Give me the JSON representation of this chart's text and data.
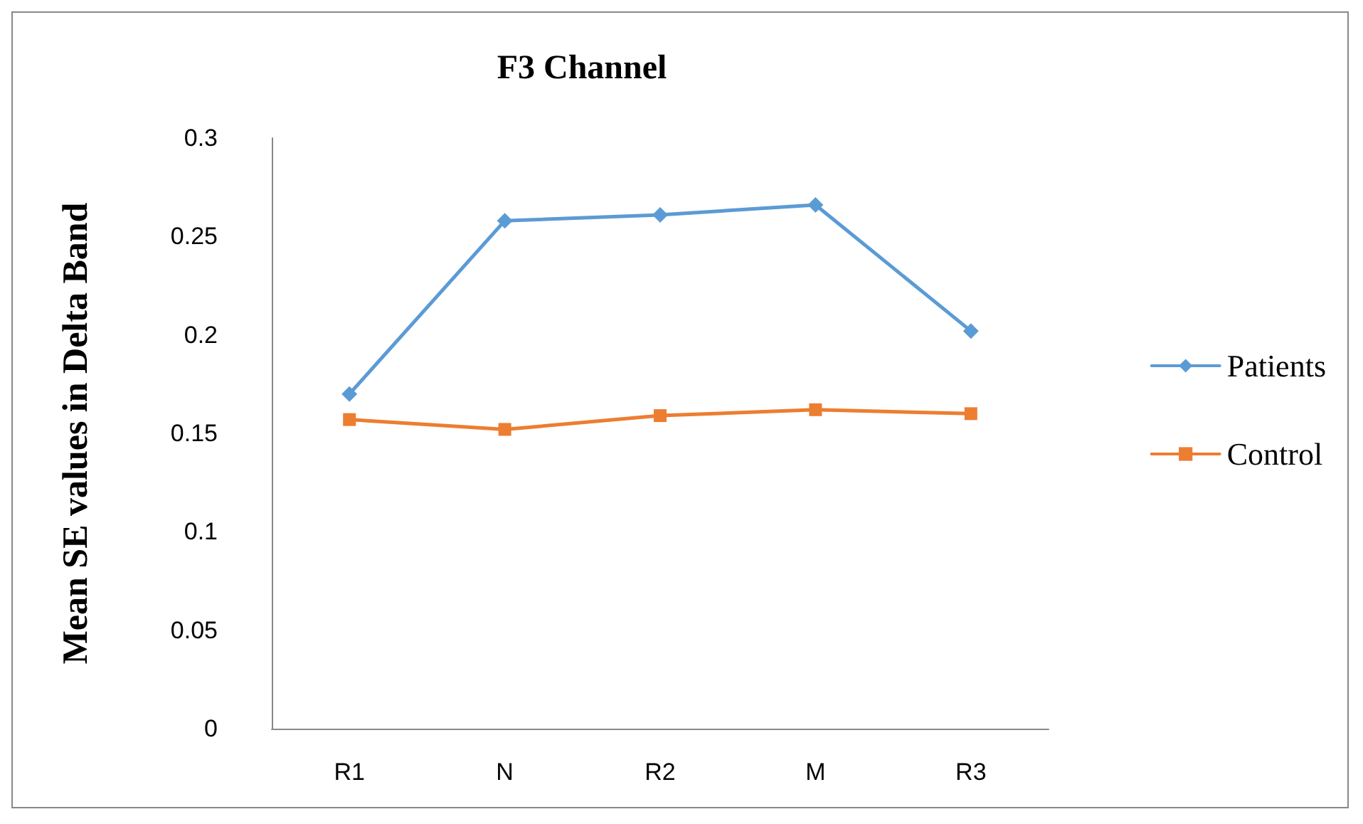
{
  "chart_data": {
    "type": "line",
    "title": "F3 Channel",
    "ylabel": "Mean SE values in Delta Band",
    "categories": [
      "R1",
      "N",
      "R2",
      "M",
      "R3"
    ],
    "series": [
      {
        "name": "Patients",
        "color": "#5b9bd5",
        "marker": "diamond",
        "values": [
          0.17,
          0.258,
          0.261,
          0.266,
          0.202
        ]
      },
      {
        "name": "Control",
        "color": "#ed7d31",
        "marker": "square",
        "values": [
          0.157,
          0.152,
          0.159,
          0.162,
          0.16
        ]
      }
    ],
    "ylim": [
      0,
      0.3
    ],
    "yticks": [
      0,
      0.05,
      0.1,
      0.15,
      0.2,
      0.25,
      0.3
    ],
    "grid": false,
    "legend": "right",
    "line_style": "solid"
  }
}
